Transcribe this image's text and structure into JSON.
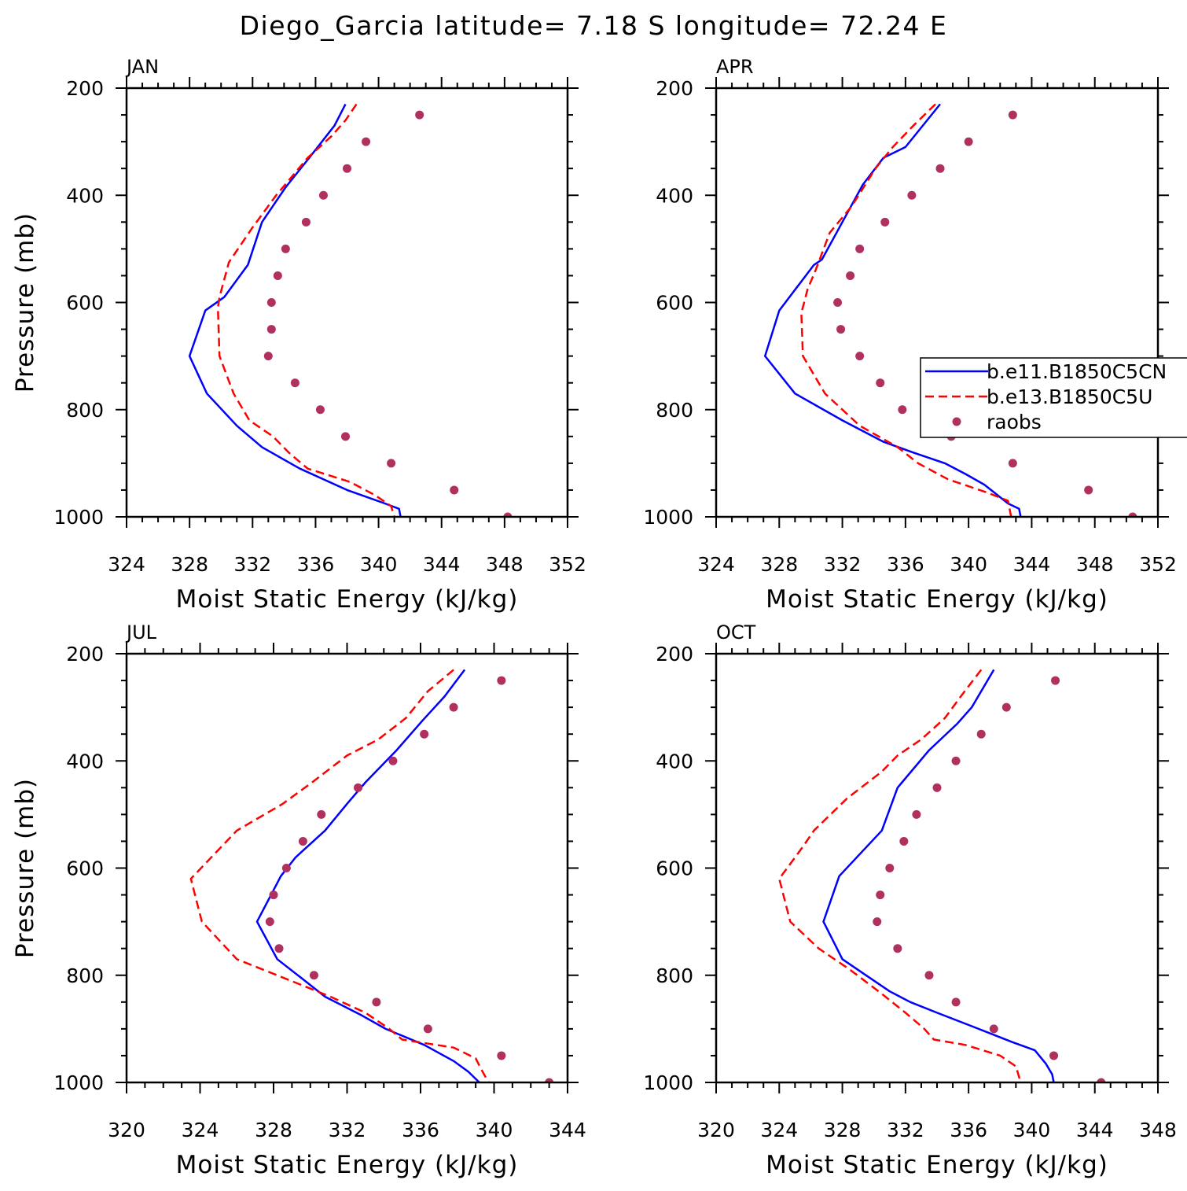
{
  "title": "Diego_Garcia  latitude= 7.18 S longitude= 72.24 E",
  "colors": {
    "model1": "#0000ff",
    "model2": "#ff0000",
    "raobs": "#b03060",
    "axis": "#000000"
  },
  "legend": {
    "entries": [
      "b.e11.B1850C5CN",
      "b.e13.B1850C5U",
      "raobs"
    ],
    "placement": "right-middle of APR panel"
  },
  "chart_data": [
    {
      "type": "line",
      "panel": "JAN",
      "title": "JAN",
      "xlabel": "Moist Static Energy (kJ/kg)",
      "ylabel": "Pressure (mb)",
      "xlim": [
        324,
        352
      ],
      "ylim": [
        200,
        1000
      ],
      "y_inverted": true,
      "xticks": [
        324,
        328,
        332,
        336,
        340,
        344,
        348,
        352
      ],
      "yticks": [
        200,
        400,
        600,
        800,
        1000
      ],
      "series": [
        {
          "name": "b.e11.B1850C5CN",
          "style": "solid",
          "points": [
            [
              337.9,
              230
            ],
            [
              337.2,
              270
            ],
            [
              335.6,
              330
            ],
            [
              334.1,
              385
            ],
            [
              332.6,
              450
            ],
            [
              331.7,
              530
            ],
            [
              330.2,
              590
            ],
            [
              329.0,
              615
            ],
            [
              328.0,
              700
            ],
            [
              329.1,
              770
            ],
            [
              331.0,
              830
            ],
            [
              332.6,
              870
            ],
            [
              335.0,
              910
            ],
            [
              338.0,
              950
            ],
            [
              340.4,
              975
            ],
            [
              341.3,
              985
            ],
            [
              341.4,
              1000
            ]
          ]
        },
        {
          "name": "b.e13.B1850C5U",
          "style": "dashed",
          "points": [
            [
              338.6,
              230
            ],
            [
              337.9,
              260
            ],
            [
              337.0,
              290
            ],
            [
              335.5,
              330
            ],
            [
              333.5,
              400
            ],
            [
              332.0,
              460
            ],
            [
              330.5,
              525
            ],
            [
              329.9,
              590
            ],
            [
              329.8,
              610
            ],
            [
              329.9,
              700
            ],
            [
              330.8,
              770
            ],
            [
              331.8,
              820
            ],
            [
              333.3,
              850
            ],
            [
              334.3,
              880
            ],
            [
              335.5,
              910
            ],
            [
              338.2,
              935
            ],
            [
              339.8,
              960
            ],
            [
              340.8,
              980
            ],
            [
              341.0,
              1000
            ]
          ]
        },
        {
          "name": "raobs",
          "style": "markers",
          "points": [
            [
              342.6,
              250
            ],
            [
              339.2,
              300
            ],
            [
              338.0,
              350
            ],
            [
              336.5,
              400
            ],
            [
              335.4,
              450
            ],
            [
              334.1,
              500
            ],
            [
              333.6,
              550
            ],
            [
              333.2,
              600
            ],
            [
              333.2,
              650
            ],
            [
              333.0,
              700
            ],
            [
              334.7,
              750
            ],
            [
              336.3,
              800
            ],
            [
              337.9,
              850
            ],
            [
              340.8,
              900
            ],
            [
              344.8,
              950
            ],
            [
              348.2,
              1000
            ]
          ]
        }
      ]
    },
    {
      "type": "line",
      "panel": "APR",
      "title": "APR",
      "xlabel": "Moist Static Energy (kJ/kg)",
      "ylabel": "",
      "xlim": [
        324,
        352
      ],
      "ylim": [
        200,
        1000
      ],
      "y_inverted": true,
      "xticks": [
        324,
        328,
        332,
        336,
        340,
        344,
        348,
        352
      ],
      "yticks": [
        200,
        400,
        600,
        800,
        1000
      ],
      "series": [
        {
          "name": "b.e11.B1850C5CN",
          "style": "solid",
          "points": [
            [
              338.2,
              230
            ],
            [
              336.0,
              310
            ],
            [
              334.6,
              330
            ],
            [
              333.3,
              380
            ],
            [
              332.0,
              450
            ],
            [
              330.7,
              520
            ],
            [
              330.2,
              530
            ],
            [
              328.0,
              615
            ],
            [
              327.1,
              700
            ],
            [
              329.0,
              770
            ],
            [
              332.0,
              820
            ],
            [
              334.6,
              860
            ],
            [
              336.5,
              880
            ],
            [
              338.5,
              900
            ],
            [
              339.8,
              920
            ],
            [
              341.0,
              940
            ],
            [
              342.5,
              975
            ],
            [
              343.2,
              985
            ],
            [
              343.3,
              1000
            ]
          ]
        },
        {
          "name": "b.e13.B1850C5U",
          "style": "dashed",
          "points": [
            [
              337.9,
              230
            ],
            [
              336.5,
              270
            ],
            [
              335.2,
              310
            ],
            [
              334.1,
              350
            ],
            [
              332.6,
              420
            ],
            [
              331.2,
              470
            ],
            [
              330.3,
              540
            ],
            [
              329.8,
              575
            ],
            [
              329.4,
              620
            ],
            [
              329.5,
              700
            ],
            [
              330.9,
              770
            ],
            [
              333.1,
              830
            ],
            [
              335.5,
              870
            ],
            [
              336.8,
              900
            ],
            [
              338.7,
              930
            ],
            [
              341.2,
              955
            ],
            [
              342.5,
              970
            ],
            [
              342.7,
              1000
            ]
          ]
        },
        {
          "name": "raobs",
          "style": "markers",
          "points": [
            [
              342.8,
              250
            ],
            [
              340.0,
              300
            ],
            [
              338.2,
              350
            ],
            [
              336.4,
              400
            ],
            [
              334.7,
              450
            ],
            [
              333.1,
              500
            ],
            [
              332.5,
              550
            ],
            [
              331.7,
              600
            ],
            [
              331.9,
              650
            ],
            [
              333.1,
              700
            ],
            [
              334.4,
              750
            ],
            [
              335.8,
              800
            ],
            [
              338.9,
              850
            ],
            [
              342.8,
              900
            ],
            [
              347.6,
              950
            ],
            [
              350.4,
              1000
            ]
          ]
        }
      ]
    },
    {
      "type": "line",
      "panel": "JUL",
      "title": "JUL",
      "xlabel": "Moist Static Energy (kJ/kg)",
      "ylabel": "Pressure (mb)",
      "xlim": [
        320,
        344
      ],
      "ylim": [
        200,
        1000
      ],
      "y_inverted": true,
      "xticks": [
        320,
        324,
        328,
        332,
        336,
        340,
        344
      ],
      "yticks": [
        200,
        400,
        600,
        800,
        1000
      ],
      "series": [
        {
          "name": "b.e11.B1850C5CN",
          "style": "solid",
          "points": [
            [
              338.4,
              230
            ],
            [
              337.3,
              280
            ],
            [
              336.1,
              325
            ],
            [
              334.7,
              380
            ],
            [
              333.0,
              440
            ],
            [
              332.0,
              480
            ],
            [
              330.8,
              530
            ],
            [
              329.2,
              580
            ],
            [
              328.4,
              615
            ],
            [
              327.1,
              700
            ],
            [
              328.2,
              770
            ],
            [
              329.7,
              810
            ],
            [
              330.8,
              840
            ],
            [
              332.8,
              875
            ],
            [
              334.1,
              900
            ],
            [
              336.2,
              930
            ],
            [
              337.8,
              960
            ],
            [
              338.6,
              980
            ],
            [
              339.2,
              1000
            ]
          ]
        },
        {
          "name": "b.e13.B1850C5U",
          "style": "dashed",
          "points": [
            [
              337.8,
              230
            ],
            [
              336.4,
              270
            ],
            [
              335.2,
              320
            ],
            [
              333.7,
              360
            ],
            [
              332.0,
              390
            ],
            [
              330.1,
              440
            ],
            [
              328.5,
              480
            ],
            [
              326.0,
              530
            ],
            [
              323.5,
              620
            ],
            [
              324.1,
              700
            ],
            [
              326.0,
              770
            ],
            [
              328.2,
              800
            ],
            [
              331.1,
              840
            ],
            [
              333.0,
              870
            ],
            [
              334.3,
              900
            ],
            [
              335.0,
              920
            ],
            [
              337.8,
              935
            ],
            [
              339.0,
              955
            ],
            [
              339.3,
              975
            ],
            [
              339.7,
              1000
            ]
          ]
        },
        {
          "name": "raobs",
          "style": "markers",
          "points": [
            [
              340.4,
              250
            ],
            [
              337.8,
              300
            ],
            [
              336.2,
              350
            ],
            [
              334.5,
              400
            ],
            [
              332.6,
              450
            ],
            [
              330.6,
              500
            ],
            [
              329.6,
              550
            ],
            [
              328.7,
              600
            ],
            [
              328.0,
              650
            ],
            [
              327.8,
              700
            ],
            [
              328.3,
              750
            ],
            [
              330.2,
              800
            ],
            [
              333.6,
              850
            ],
            [
              336.4,
              900
            ],
            [
              340.4,
              950
            ],
            [
              343.0,
              1000
            ]
          ]
        }
      ]
    },
    {
      "type": "line",
      "panel": "OCT",
      "title": "OCT",
      "xlabel": "Moist Static Energy (kJ/kg)",
      "ylabel": "",
      "xlim": [
        320,
        348
      ],
      "ylim": [
        200,
        1000
      ],
      "y_inverted": true,
      "xticks": [
        320,
        324,
        328,
        332,
        336,
        340,
        344,
        348
      ],
      "yticks": [
        200,
        400,
        600,
        800,
        1000
      ],
      "series": [
        {
          "name": "b.e11.B1850C5CN",
          "style": "solid",
          "points": [
            [
              337.6,
              230
            ],
            [
              336.2,
              300
            ],
            [
              335.3,
              330
            ],
            [
              333.5,
              380
            ],
            [
              331.5,
              450
            ],
            [
              330.5,
              530
            ],
            [
              327.8,
              615
            ],
            [
              326.8,
              700
            ],
            [
              328.0,
              770
            ],
            [
              329.5,
              800
            ],
            [
              331.0,
              830
            ],
            [
              332.3,
              850
            ],
            [
              334.0,
              870
            ],
            [
              336.2,
              895
            ],
            [
              338.8,
              925
            ],
            [
              340.2,
              940
            ],
            [
              340.9,
              965
            ],
            [
              341.3,
              985
            ],
            [
              341.4,
              1000
            ]
          ]
        },
        {
          "name": "b.e13.B1850C5U",
          "style": "dashed",
          "points": [
            [
              336.8,
              230
            ],
            [
              335.5,
              280
            ],
            [
              334.5,
              320
            ],
            [
              333.0,
              360
            ],
            [
              331.5,
              390
            ],
            [
              330.5,
              420
            ],
            [
              328.3,
              470
            ],
            [
              326.2,
              530
            ],
            [
              325.5,
              560
            ],
            [
              324.0,
              620
            ],
            [
              324.7,
              700
            ],
            [
              326.5,
              750
            ],
            [
              328.5,
              790
            ],
            [
              330.3,
              830
            ],
            [
              332.0,
              870
            ],
            [
              333.2,
              900
            ],
            [
              333.8,
              920
            ],
            [
              335.8,
              930
            ],
            [
              338.0,
              950
            ],
            [
              339.0,
              970
            ],
            [
              339.3,
              1000
            ]
          ]
        },
        {
          "name": "raobs",
          "style": "markers",
          "points": [
            [
              341.5,
              250
            ],
            [
              338.4,
              300
            ],
            [
              336.8,
              350
            ],
            [
              335.2,
              400
            ],
            [
              334.0,
              450
            ],
            [
              332.7,
              500
            ],
            [
              331.9,
              550
            ],
            [
              331.0,
              600
            ],
            [
              330.4,
              650
            ],
            [
              330.2,
              700
            ],
            [
              331.5,
              750
            ],
            [
              333.5,
              800
            ],
            [
              335.2,
              850
            ],
            [
              337.6,
              900
            ],
            [
              341.4,
              950
            ],
            [
              344.4,
              1000
            ]
          ]
        }
      ]
    }
  ]
}
